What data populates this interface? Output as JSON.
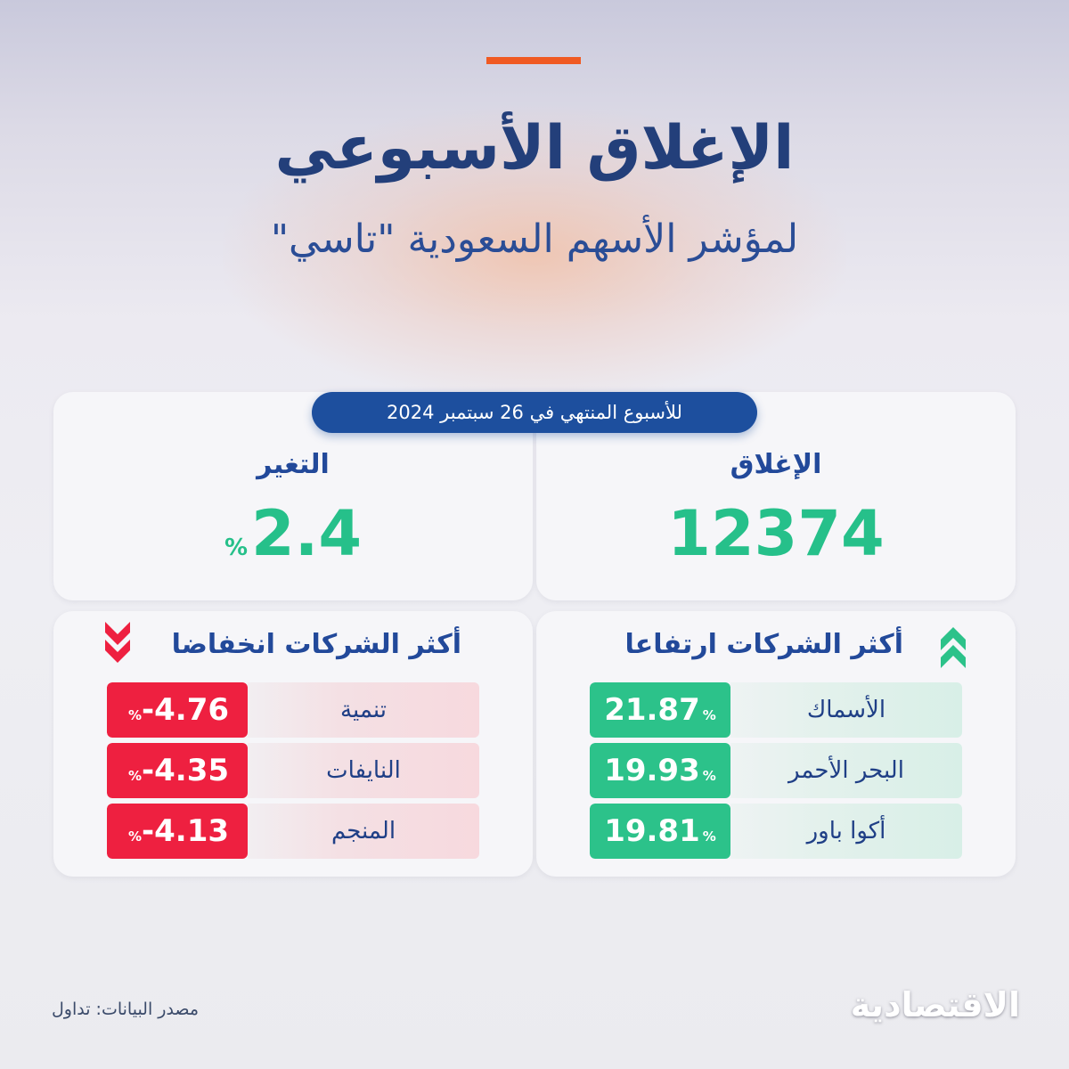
{
  "header": {
    "title": "الإغلاق الأسبوعي",
    "subtitle": "لمؤشر الأسهم السعودية \"تاسي\"",
    "accent_color": "#f05a22"
  },
  "week_label": "للأسبوع المنتهي في 26 سبتمبر 2024",
  "close": {
    "label": "الإغلاق",
    "value": "12374"
  },
  "change": {
    "label": "التغير",
    "value": "2.4",
    "unit": "%"
  },
  "gainers": {
    "title": "أكثر الشركات ارتفاعا",
    "icon": "double-chevron-up-icon",
    "color": "#2cc28a",
    "items": [
      {
        "name": "الأسماك",
        "value": "21.87",
        "unit": "%"
      },
      {
        "name": "البحر الأحمر",
        "value": "19.93",
        "unit": "%"
      },
      {
        "name": "أكوا باور",
        "value": "19.81",
        "unit": "%"
      }
    ]
  },
  "losers": {
    "title": "أكثر الشركات انخفاضا",
    "icon": "double-chevron-down-icon",
    "color": "#ee2040",
    "items": [
      {
        "name": "تنمية",
        "value": "-4.76",
        "unit": "%"
      },
      {
        "name": "النايفات",
        "value": "-4.35",
        "unit": "%"
      },
      {
        "name": "المنجم",
        "value": "-4.13",
        "unit": "%"
      }
    ]
  },
  "footer": {
    "source": "مصدر البيانات: تداول",
    "logo": "الاقتصادية"
  }
}
